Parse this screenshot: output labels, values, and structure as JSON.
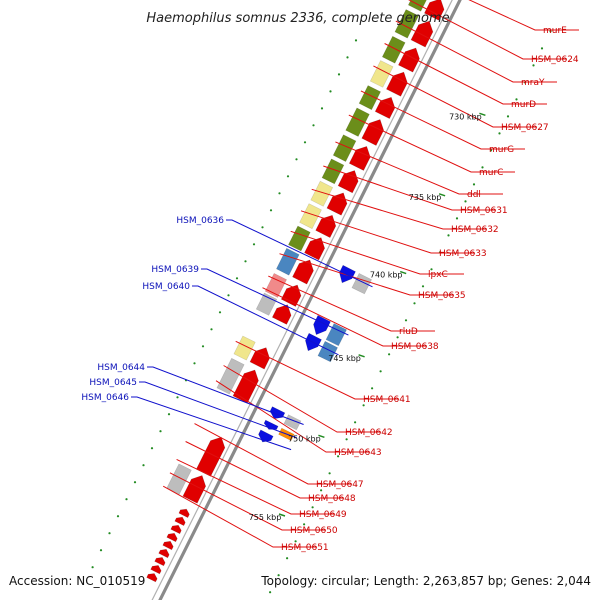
{
  "title": "Haemophilus somnus 2336, complete genome",
  "footer": {
    "accession": "Accession: NC_010519",
    "summary": "Topology: circular; Length: 2,263,857 bp; Genes: 2,044"
  },
  "colors": {
    "backbone": "#8a8a8a",
    "forward_gene": "#e00000",
    "reverse_gene": "#0a10e0",
    "cog_green": "#6b8e1a",
    "cog_yellow": "#f0e68c",
    "cog_gray": "#bdbdbd",
    "cog_blue": "#4a86c0",
    "cog_pink": "#f08a8a",
    "cog_orange": "#ff8c00",
    "label_red": "#cc0000",
    "label_blue": "#0a10b8",
    "tick_green": "#228b22"
  },
  "kbp_labels": [
    "730 kbp",
    "735 kbp",
    "740 kbp",
    "745 kbp",
    "750 kbp",
    "755 kbp"
  ],
  "right_labels": [
    "murE",
    "HSM_0624",
    "mraY",
    "murD",
    "HSM_0627",
    "murG",
    "murC",
    "ddl",
    "HSM_0631",
    "HSM_0632",
    "HSM_0633",
    "lpxC",
    "HSM_0635",
    "rluD",
    "HSM_0638",
    "HSM_0641",
    "HSM_0642",
    "HSM_0643",
    "HSM_0647",
    "HSM_0648",
    "HSM_0649",
    "HSM_0650",
    "HSM_0651"
  ],
  "left_labels": [
    "HSM_0636",
    "HSM_0639",
    "HSM_0640",
    "HSM_0644",
    "HSM_0645",
    "HSM_0646"
  ]
}
